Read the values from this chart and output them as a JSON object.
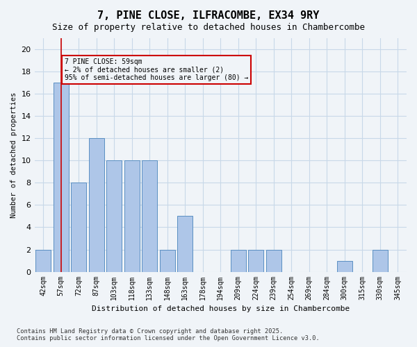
{
  "title": "7, PINE CLOSE, ILFRACOMBE, EX34 9RY",
  "subtitle": "Size of property relative to detached houses in Chambercombe",
  "xlabel": "Distribution of detached houses by size in Chambercombe",
  "ylabel": "Number of detached properties",
  "categories": [
    "42sqm",
    "57sqm",
    "72sqm",
    "87sqm",
    "103sqm",
    "118sqm",
    "133sqm",
    "148sqm",
    "163sqm",
    "178sqm",
    "194sqm",
    "209sqm",
    "224sqm",
    "239sqm",
    "254sqm",
    "269sqm",
    "284sqm",
    "300sqm",
    "315sqm",
    "330sqm",
    "345sqm"
  ],
  "values": [
    2,
    17,
    8,
    12,
    10,
    10,
    10,
    2,
    5,
    0,
    0,
    2,
    2,
    2,
    0,
    0,
    0,
    1,
    0,
    2,
    0
  ],
  "bar_color": "#aec6e8",
  "bar_edge_color": "#5a8fc2",
  "grid_color": "#c8d8e8",
  "annotation_box_color": "#cc0000",
  "annotation_text": "7 PINE CLOSE: 59sqm\n← 2% of detached houses are smaller (2)\n95% of semi-detached houses are larger (80) →",
  "property_line_x": 1,
  "property_line_color": "#cc0000",
  "ylim": [
    0,
    21
  ],
  "yticks": [
    0,
    2,
    4,
    6,
    8,
    10,
    12,
    14,
    16,
    18,
    20
  ],
  "footnote": "Contains HM Land Registry data © Crown copyright and database right 2025.\nContains public sector information licensed under the Open Government Licence v3.0.",
  "background_color": "#f0f4f8"
}
